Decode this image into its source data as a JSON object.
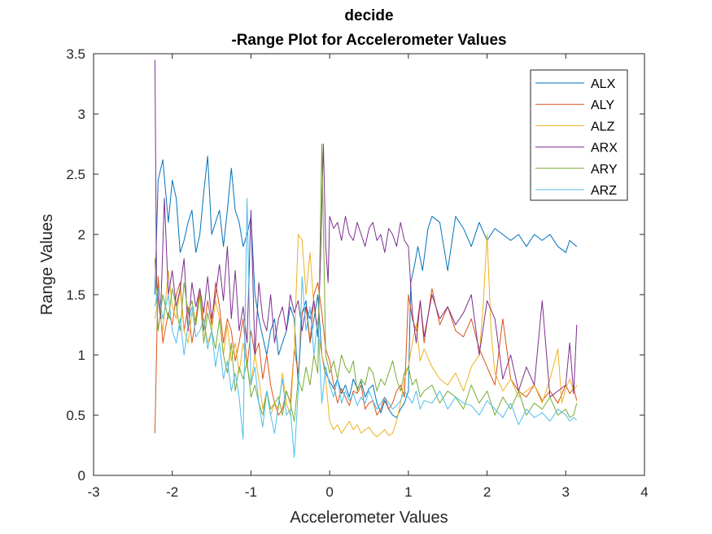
{
  "chart_data": {
    "type": "line",
    "title": [
      "decide",
      "-Range Plot for Accelerometer Values"
    ],
    "xlabel": "Accelerometer Values",
    "ylabel": "Range Values",
    "xlim": [
      -3,
      4
    ],
    "ylim": [
      0,
      3.5
    ],
    "xticks": [
      "-3",
      "-2",
      "-1",
      "0",
      "1",
      "2",
      "3",
      "4"
    ],
    "yticks": [
      "0",
      "0.5",
      "1",
      "1.5",
      "2",
      "2.5",
      "3",
      "3.5"
    ],
    "grid": false,
    "legend_position": "top-right",
    "series": [
      {
        "name": "ALX",
        "color": "#0072BD",
        "x": [
          -2.22,
          -2.18,
          -2.12,
          -2.05,
          -2.0,
          -1.95,
          -1.9,
          -1.85,
          -1.8,
          -1.75,
          -1.7,
          -1.65,
          -1.6,
          -1.55,
          -1.5,
          -1.45,
          -1.4,
          -1.35,
          -1.3,
          -1.25,
          -1.2,
          -1.15,
          -1.1,
          -1.05,
          -1.0,
          -0.95,
          -0.9,
          -0.85,
          -0.8,
          -0.75,
          -0.7,
          -0.65,
          -0.6,
          -0.55,
          -0.5,
          -0.45,
          -0.4,
          -0.35,
          -0.3,
          -0.25,
          -0.2,
          -0.15,
          -0.1,
          -0.05,
          0.0,
          0.05,
          0.1,
          0.15,
          0.2,
          0.25,
          0.3,
          0.35,
          0.4,
          0.45,
          0.5,
          0.55,
          0.6,
          0.65,
          0.7,
          0.75,
          0.8,
          0.85,
          0.9,
          0.95,
          1.0,
          1.03,
          1.08,
          1.12,
          1.18,
          1.25,
          1.3,
          1.4,
          1.5,
          1.6,
          1.7,
          1.8,
          1.9,
          2.0,
          2.1,
          2.2,
          2.3,
          2.4,
          2.5,
          2.6,
          2.7,
          2.8,
          2.9,
          3.0,
          3.05,
          3.1,
          3.14
        ],
        "y": [
          1.5,
          2.45,
          2.62,
          2.1,
          2.45,
          2.3,
          1.85,
          1.95,
          2.1,
          2.2,
          1.85,
          2.0,
          2.35,
          2.65,
          2.0,
          2.1,
          2.2,
          1.9,
          2.2,
          2.55,
          2.2,
          2.1,
          1.9,
          2.0,
          2.15,
          1.5,
          1.3,
          1.15,
          1.0,
          1.2,
          1.3,
          1.0,
          1.1,
          1.2,
          1.4,
          1.3,
          0.75,
          1.35,
          1.45,
          1.1,
          1.3,
          1.5,
          1.0,
          0.85,
          0.78,
          0.72,
          0.8,
          0.68,
          0.75,
          0.65,
          0.8,
          0.72,
          0.78,
          0.65,
          0.72,
          0.75,
          0.6,
          0.52,
          0.62,
          0.55,
          0.5,
          0.48,
          0.55,
          0.6,
          0.7,
          1.6,
          1.75,
          1.9,
          1.7,
          2.05,
          2.15,
          2.1,
          1.7,
          2.15,
          2.05,
          1.9,
          2.1,
          1.95,
          2.05,
          2.0,
          1.95,
          2.0,
          1.9,
          2.0,
          1.95,
          2.0,
          1.9,
          1.85,
          1.95,
          1.92,
          1.9
        ]
      },
      {
        "name": "ALY",
        "color": "#D95319",
        "x": [
          -2.22,
          -2.18,
          -2.12,
          -2.05,
          -2.0,
          -1.95,
          -1.9,
          -1.85,
          -1.8,
          -1.75,
          -1.7,
          -1.65,
          -1.6,
          -1.55,
          -1.5,
          -1.45,
          -1.4,
          -1.35,
          -1.3,
          -1.25,
          -1.2,
          -1.15,
          -1.1,
          -1.05,
          -1.0,
          -0.95,
          -0.9,
          -0.85,
          -0.8,
          -0.75,
          -0.7,
          -0.65,
          -0.6,
          -0.55,
          -0.5,
          -0.45,
          -0.4,
          -0.35,
          -0.3,
          -0.25,
          -0.2,
          -0.15,
          -0.1,
          -0.05,
          0.0,
          0.05,
          0.1,
          0.15,
          0.2,
          0.25,
          0.3,
          0.35,
          0.4,
          0.45,
          0.5,
          0.55,
          0.6,
          0.65,
          0.7,
          0.75,
          0.8,
          0.85,
          0.9,
          0.95,
          1.0,
          1.05,
          1.1,
          1.15,
          1.2,
          1.3,
          1.4,
          1.5,
          1.6,
          1.7,
          1.8,
          1.9,
          2.0,
          2.1,
          2.2,
          2.3,
          2.4,
          2.5,
          2.6,
          2.7,
          2.8,
          2.9,
          3.0,
          3.05,
          3.1,
          3.14
        ],
        "y": [
          0.35,
          1.65,
          1.1,
          1.35,
          1.25,
          1.5,
          1.6,
          1.2,
          1.4,
          1.1,
          1.3,
          1.55,
          1.2,
          1.45,
          1.25,
          1.6,
          1.4,
          1.1,
          1.3,
          1.2,
          0.95,
          1.1,
          1.3,
          0.9,
          1.2,
          1.0,
          1.1,
          0.8,
          1.0,
          0.75,
          0.6,
          0.5,
          0.55,
          0.7,
          0.6,
          1.05,
          0.85,
          1.35,
          1.4,
          1.1,
          1.5,
          1.6,
          1.35,
          1.05,
          0.95,
          0.75,
          0.6,
          0.72,
          0.65,
          0.58,
          0.7,
          0.68,
          0.75,
          0.55,
          0.6,
          0.62,
          0.5,
          0.55,
          0.65,
          0.55,
          0.6,
          0.7,
          0.75,
          0.65,
          1.5,
          1.3,
          1.2,
          1.45,
          1.1,
          1.55,
          1.25,
          1.4,
          1.2,
          1.15,
          1.3,
          1.05,
          0.9,
          0.75,
          1.3,
          0.8,
          0.7,
          0.65,
          0.75,
          0.62,
          0.7,
          0.6,
          0.75,
          0.68,
          0.72,
          0.62
        ]
      },
      {
        "name": "ALZ",
        "color": "#EDB120",
        "x": [
          -2.22,
          -2.18,
          -2.12,
          -2.05,
          -2.0,
          -1.95,
          -1.9,
          -1.85,
          -1.8,
          -1.75,
          -1.7,
          -1.65,
          -1.6,
          -1.55,
          -1.5,
          -1.45,
          -1.4,
          -1.35,
          -1.3,
          -1.25,
          -1.2,
          -1.15,
          -1.1,
          -1.05,
          -1.0,
          -0.95,
          -0.9,
          -0.85,
          -0.8,
          -0.75,
          -0.7,
          -0.65,
          -0.6,
          -0.55,
          -0.5,
          -0.45,
          -0.4,
          -0.35,
          -0.3,
          -0.25,
          -0.2,
          -0.15,
          -0.1,
          -0.05,
          0.0,
          0.05,
          0.1,
          0.15,
          0.2,
          0.25,
          0.3,
          0.35,
          0.4,
          0.45,
          0.5,
          0.55,
          0.6,
          0.65,
          0.7,
          0.75,
          0.8,
          0.85,
          0.9,
          0.95,
          1.0,
          1.05,
          1.1,
          1.15,
          1.2,
          1.3,
          1.4,
          1.5,
          1.6,
          1.7,
          1.8,
          1.9,
          1.95,
          2.0,
          2.05,
          2.1,
          2.2,
          2.3,
          2.4,
          2.5,
          2.6,
          2.7,
          2.8,
          2.9,
          2.95,
          3.0,
          3.05,
          3.1,
          3.14
        ],
        "y": [
          1.3,
          1.45,
          1.2,
          1.7,
          1.4,
          1.3,
          1.55,
          1.2,
          1.1,
          1.35,
          1.25,
          1.5,
          1.3,
          1.1,
          1.2,
          1.45,
          1.3,
          1.0,
          1.25,
          0.95,
          1.1,
          0.85,
          1.1,
          0.9,
          0.75,
          1.0,
          0.8,
          0.55,
          0.7,
          0.5,
          0.6,
          0.55,
          0.85,
          0.6,
          0.5,
          1.05,
          2.0,
          1.95,
          1.5,
          1.85,
          1.4,
          1.2,
          1.0,
          0.8,
          0.45,
          0.38,
          0.42,
          0.35,
          0.4,
          0.45,
          0.38,
          0.42,
          0.35,
          0.38,
          0.4,
          0.35,
          0.32,
          0.35,
          0.38,
          0.33,
          0.35,
          0.45,
          0.6,
          0.8,
          0.9,
          1.1,
          1.25,
          0.95,
          1.05,
          0.9,
          0.8,
          0.75,
          0.85,
          0.7,
          0.9,
          1.0,
          1.4,
          2.0,
          1.2,
          0.85,
          0.7,
          0.8,
          0.65,
          0.7,
          0.75,
          0.6,
          0.8,
          1.05,
          0.6,
          0.72,
          0.8,
          0.7,
          0.75
        ]
      },
      {
        "name": "ARX",
        "color": "#7E2F8E",
        "x": [
          -2.22,
          -2.2,
          -2.15,
          -2.1,
          -2.05,
          -2.0,
          -1.95,
          -1.9,
          -1.85,
          -1.8,
          -1.75,
          -1.7,
          -1.65,
          -1.6,
          -1.55,
          -1.5,
          -1.45,
          -1.4,
          -1.35,
          -1.3,
          -1.25,
          -1.2,
          -1.15,
          -1.1,
          -1.05,
          -1.0,
          -0.95,
          -0.9,
          -0.85,
          -0.8,
          -0.75,
          -0.7,
          -0.65,
          -0.6,
          -0.55,
          -0.5,
          -0.45,
          -0.4,
          -0.35,
          -0.3,
          -0.25,
          -0.2,
          -0.15,
          -0.12,
          -0.08,
          -0.05,
          -0.02,
          0.0,
          0.05,
          0.1,
          0.15,
          0.2,
          0.25,
          0.3,
          0.35,
          0.4,
          0.45,
          0.5,
          0.55,
          0.6,
          0.65,
          0.7,
          0.75,
          0.8,
          0.85,
          0.9,
          0.95,
          1.0,
          1.05,
          1.1,
          1.15,
          1.2,
          1.3,
          1.4,
          1.5,
          1.6,
          1.7,
          1.8,
          1.9,
          2.0,
          2.1,
          2.2,
          2.3,
          2.4,
          2.5,
          2.6,
          2.7,
          2.8,
          2.9,
          3.0,
          3.05,
          3.1,
          3.14
        ],
        "y": [
          3.45,
          1.6,
          1.3,
          2.3,
          1.5,
          1.7,
          1.4,
          1.55,
          1.8,
          1.2,
          1.6,
          1.4,
          1.55,
          1.35,
          1.65,
          1.3,
          1.5,
          1.75,
          1.45,
          1.9,
          1.3,
          1.7,
          1.2,
          1.4,
          1.1,
          2.2,
          1.0,
          1.6,
          1.3,
          1.2,
          1.5,
          1.1,
          1.3,
          1.4,
          1.2,
          1.5,
          1.35,
          1.45,
          1.2,
          1.4,
          1.3,
          1.45,
          1.15,
          1.7,
          2.75,
          1.9,
          1.6,
          2.15,
          2.05,
          2.1,
          1.95,
          2.15,
          2.0,
          1.95,
          2.1,
          2.0,
          1.9,
          2.05,
          2.1,
          1.95,
          2.0,
          1.85,
          2.05,
          2.0,
          1.9,
          2.1,
          1.95,
          1.9,
          1.35,
          1.1,
          1.45,
          1.15,
          1.5,
          1.3,
          1.4,
          1.25,
          1.35,
          1.5,
          1.0,
          1.45,
          1.3,
          0.8,
          1.0,
          0.7,
          0.9,
          0.75,
          1.45,
          0.65,
          0.7,
          0.75,
          1.1,
          0.68,
          1.25
        ]
      },
      {
        "name": "ARY",
        "color": "#77AC30",
        "x": [
          -2.22,
          -2.18,
          -2.12,
          -2.05,
          -2.0,
          -1.95,
          -1.9,
          -1.85,
          -1.8,
          -1.75,
          -1.7,
          -1.65,
          -1.6,
          -1.55,
          -1.5,
          -1.45,
          -1.4,
          -1.35,
          -1.3,
          -1.25,
          -1.2,
          -1.15,
          -1.1,
          -1.05,
          -1.0,
          -0.95,
          -0.9,
          -0.85,
          -0.8,
          -0.75,
          -0.7,
          -0.65,
          -0.6,
          -0.55,
          -0.5,
          -0.45,
          -0.4,
          -0.35,
          -0.3,
          -0.25,
          -0.2,
          -0.15,
          -0.1,
          -0.05,
          0.0,
          0.05,
          0.1,
          0.15,
          0.2,
          0.25,
          0.3,
          0.35,
          0.4,
          0.45,
          0.5,
          0.55,
          0.6,
          0.65,
          0.7,
          0.75,
          0.8,
          0.85,
          0.9,
          0.95,
          1.0,
          1.05,
          1.1,
          1.15,
          1.2,
          1.3,
          1.4,
          1.5,
          1.6,
          1.7,
          1.8,
          1.9,
          2.0,
          2.1,
          2.2,
          2.3,
          2.4,
          2.5,
          2.6,
          2.7,
          2.8,
          2.9,
          3.0,
          3.05,
          3.1,
          3.14
        ],
        "y": [
          1.8,
          1.2,
          1.5,
          1.3,
          1.55,
          1.4,
          1.2,
          1.6,
          1.35,
          1.45,
          1.25,
          1.5,
          1.1,
          1.35,
          1.2,
          1.05,
          1.3,
          1.0,
          0.85,
          1.1,
          0.7,
          0.9,
          0.8,
          0.95,
          0.65,
          0.75,
          0.6,
          0.5,
          0.7,
          0.55,
          0.6,
          0.65,
          0.5,
          0.7,
          0.6,
          0.45,
          0.8,
          0.7,
          0.9,
          0.75,
          1.0,
          0.85,
          2.75,
          1.0,
          0.85,
          0.95,
          0.8,
          1.0,
          0.9,
          0.85,
          0.95,
          0.7,
          0.8,
          0.75,
          0.9,
          0.85,
          0.7,
          0.8,
          0.75,
          0.85,
          0.95,
          0.8,
          0.7,
          0.85,
          0.9,
          0.75,
          0.8,
          0.65,
          0.7,
          0.75,
          0.6,
          0.7,
          0.65,
          0.55,
          0.75,
          0.6,
          0.7,
          0.5,
          0.65,
          0.55,
          0.7,
          0.5,
          0.6,
          0.55,
          0.65,
          0.5,
          0.55,
          0.48,
          0.5,
          0.6
        ]
      },
      {
        "name": "ARZ",
        "color": "#4DBEEE",
        "x": [
          -2.22,
          -2.18,
          -2.12,
          -2.05,
          -2.0,
          -1.95,
          -1.9,
          -1.85,
          -1.8,
          -1.75,
          -1.7,
          -1.65,
          -1.6,
          -1.55,
          -1.5,
          -1.45,
          -1.4,
          -1.35,
          -1.3,
          -1.25,
          -1.2,
          -1.15,
          -1.1,
          -1.05,
          -1.0,
          -0.95,
          -0.9,
          -0.85,
          -0.8,
          -0.75,
          -0.7,
          -0.65,
          -0.6,
          -0.55,
          -0.5,
          -0.45,
          -0.4,
          -0.35,
          -0.3,
          -0.25,
          -0.2,
          -0.15,
          -0.1,
          -0.05,
          0.0,
          0.05,
          0.1,
          0.15,
          0.2,
          0.25,
          0.3,
          0.35,
          0.4,
          0.45,
          0.5,
          0.55,
          0.6,
          0.65,
          0.7,
          0.75,
          0.8,
          0.85,
          0.9,
          0.95,
          1.0,
          1.05,
          1.1,
          1.15,
          1.2,
          1.3,
          1.4,
          1.5,
          1.6,
          1.7,
          1.8,
          1.9,
          2.0,
          2.1,
          2.2,
          2.3,
          2.4,
          2.5,
          2.6,
          2.7,
          2.8,
          2.9,
          3.0,
          3.05,
          3.1,
          3.14
        ],
        "y": [
          1.4,
          1.55,
          1.3,
          1.5,
          1.2,
          1.1,
          1.3,
          1.0,
          1.25,
          1.4,
          1.15,
          1.2,
          1.3,
          1.05,
          1.2,
          0.9,
          1.1,
          0.8,
          0.95,
          0.7,
          0.85,
          0.65,
          0.3,
          2.3,
          0.75,
          0.9,
          0.6,
          0.4,
          0.7,
          0.5,
          0.35,
          0.6,
          0.8,
          0.5,
          0.55,
          0.15,
          0.7,
          1.65,
          1.2,
          1.4,
          1.0,
          1.3,
          0.6,
          0.9,
          0.75,
          0.65,
          0.8,
          0.6,
          0.7,
          0.62,
          0.68,
          0.58,
          0.65,
          0.6,
          0.7,
          0.62,
          0.55,
          0.6,
          0.65,
          0.6,
          0.55,
          0.58,
          0.62,
          0.7,
          0.65,
          0.6,
          0.7,
          0.55,
          0.62,
          0.6,
          0.7,
          0.55,
          0.65,
          0.6,
          0.58,
          0.5,
          0.62,
          0.55,
          0.48,
          0.6,
          0.42,
          0.55,
          0.48,
          0.52,
          0.45,
          0.55,
          0.5,
          0.45,
          0.48,
          0.46
        ]
      }
    ]
  }
}
